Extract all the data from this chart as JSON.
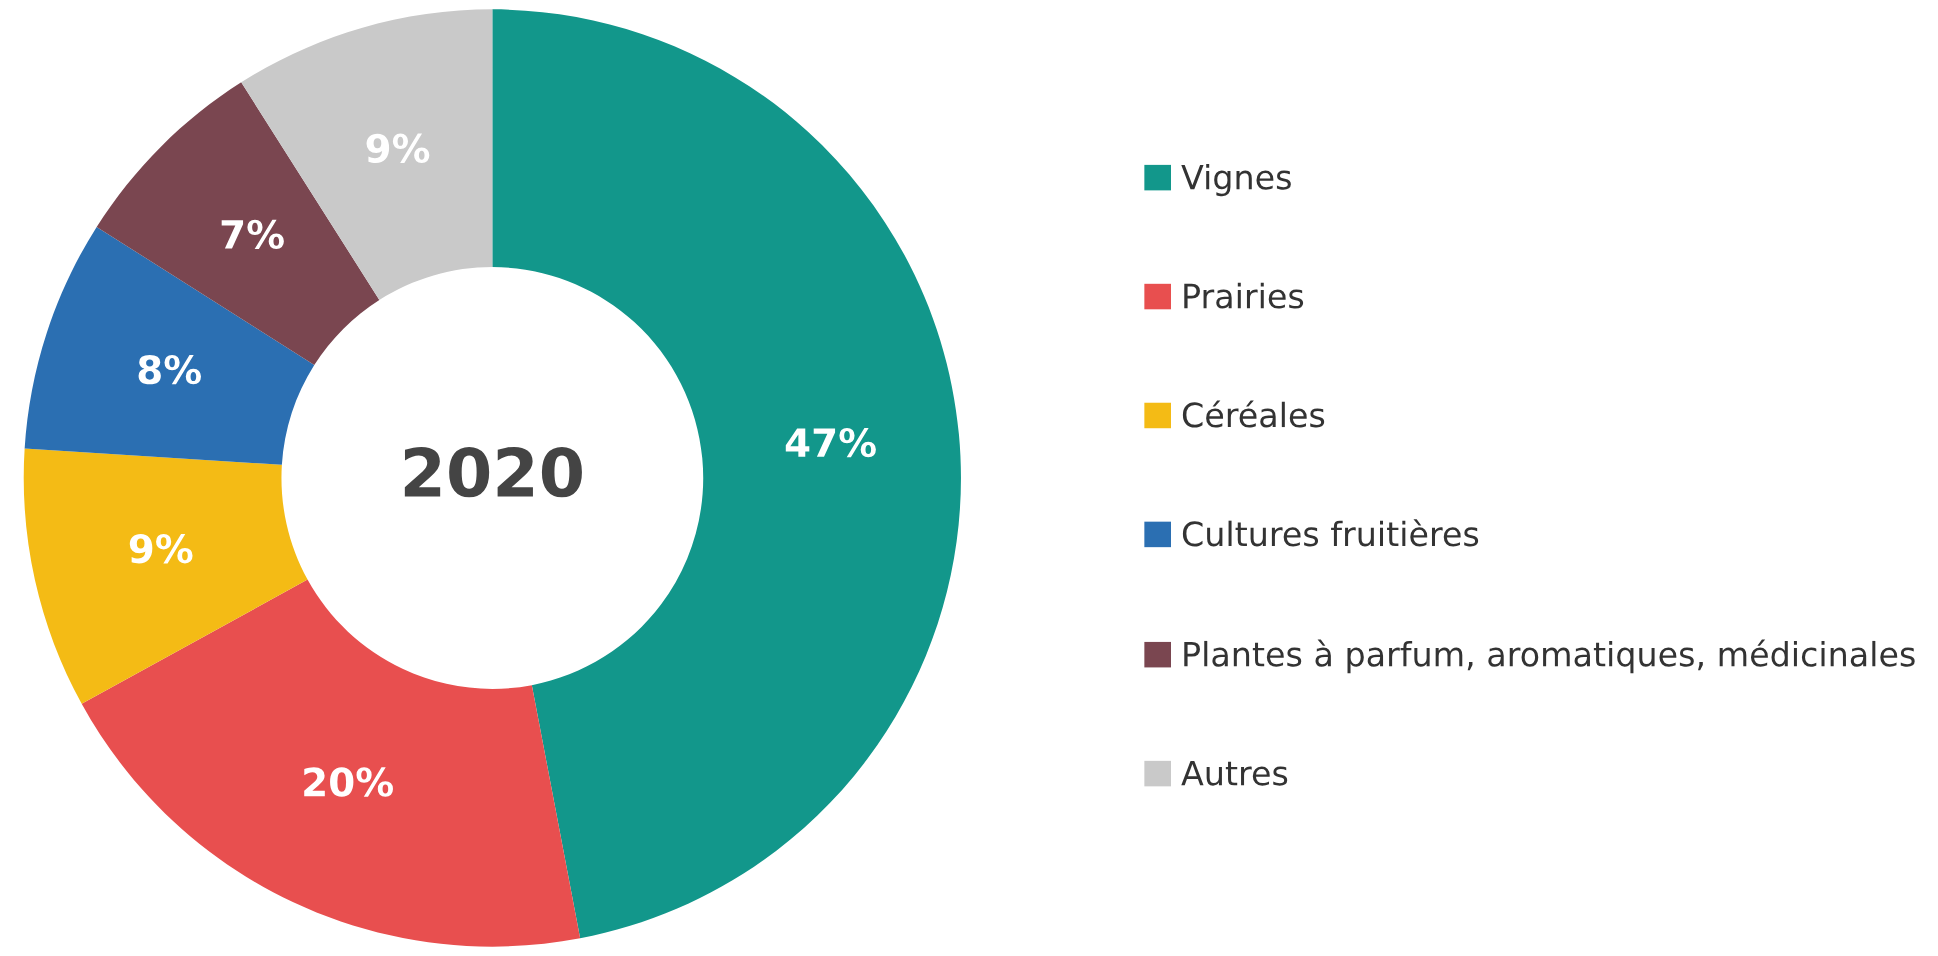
{
  "chart_data": {
    "type": "donut",
    "categories": [
      "Vignes",
      "Prairies",
      "Céréales",
      "Cultures fruitières",
      "Plantes à parfum, aromatiques, médicinales",
      "Autres"
    ],
    "values": [
      47,
      20,
      9,
      8,
      7,
      9
    ],
    "colors": [
      "#12978b",
      "#e84f4f",
      "#f4bb15",
      "#2b6fb2",
      "#7a4650",
      "#c9c9c9"
    ],
    "value_labels": [
      "47%",
      "20%",
      "9%",
      "8%",
      "7%",
      "9%"
    ],
    "annotations": [
      "2020"
    ],
    "legend": "right"
  }
}
